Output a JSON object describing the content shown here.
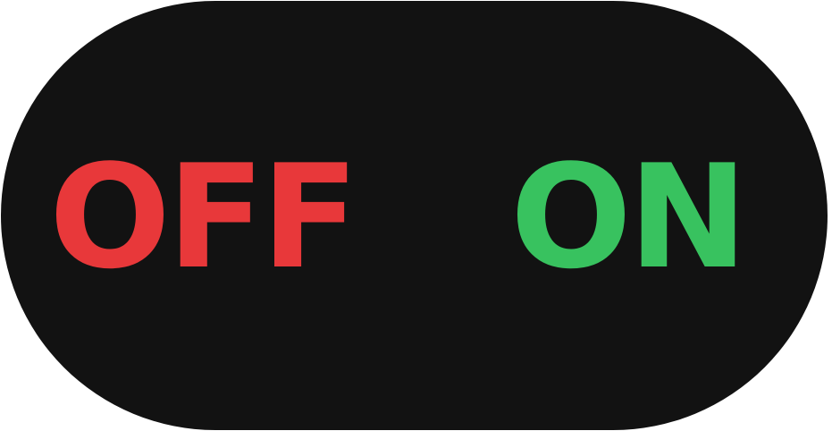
{
  "toggle": {
    "off_label": "OFF",
    "on_label": "ON",
    "state": "off"
  },
  "colors": {
    "background": "#121212",
    "off": "#e8383a",
    "on": "#38c25f"
  }
}
